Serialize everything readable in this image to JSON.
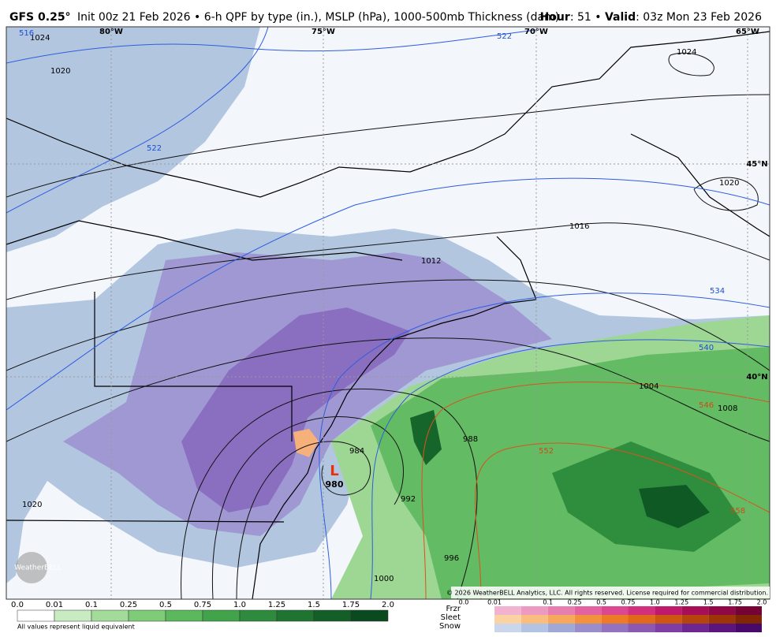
{
  "header": {
    "model": "GFS 0.25°",
    "description": "Init 00z 21 Feb 2026 • 6-h QPF by type (in.), MSLP (hPa), 1000-500mb Thickness (dam)",
    "hour_label": "Hour",
    "hour_value": ": 51 •",
    "valid_label": "Valid",
    "valid_value": ": 03z Mon 23 Feb 2026"
  },
  "map": {
    "longitudes": [
      "80°W",
      "75°W",
      "70°W",
      "65°W"
    ],
    "latitudes": [
      "45°N",
      "40°N"
    ],
    "isobars": [
      "1024",
      "1020",
      "1024",
      "1020",
      "1016",
      "1012",
      "1008",
      "1004",
      "988",
      "984",
      "992",
      "996",
      "1000",
      "1020"
    ],
    "thickness": [
      "516",
      "522",
      "522",
      "534",
      "540",
      "546",
      "552",
      "558"
    ],
    "low": {
      "symbol": "L",
      "pressure": "980"
    },
    "watermark": "WeatherBELL",
    "copyright": "© 2026 WeatherBELL Analytics, LLC. All rights reserved. License required for commercial distribution."
  },
  "legend": {
    "rain_ticks": [
      "0.0",
      "0.01",
      "0.1",
      "0.25",
      "0.5",
      "0.75",
      "1.0",
      "1.25",
      "1.5",
      "1.75",
      "2.0"
    ],
    "note": "All values represent liquid equivalent",
    "types": [
      "Frzr",
      "Sleet",
      "Snow"
    ],
    "type_ticks": [
      "0.0",
      "0.01",
      "0.1",
      "0.25",
      "0.5",
      "0.75",
      "1.0",
      "1.25",
      "1.5",
      "1.75",
      "2.0"
    ]
  }
}
